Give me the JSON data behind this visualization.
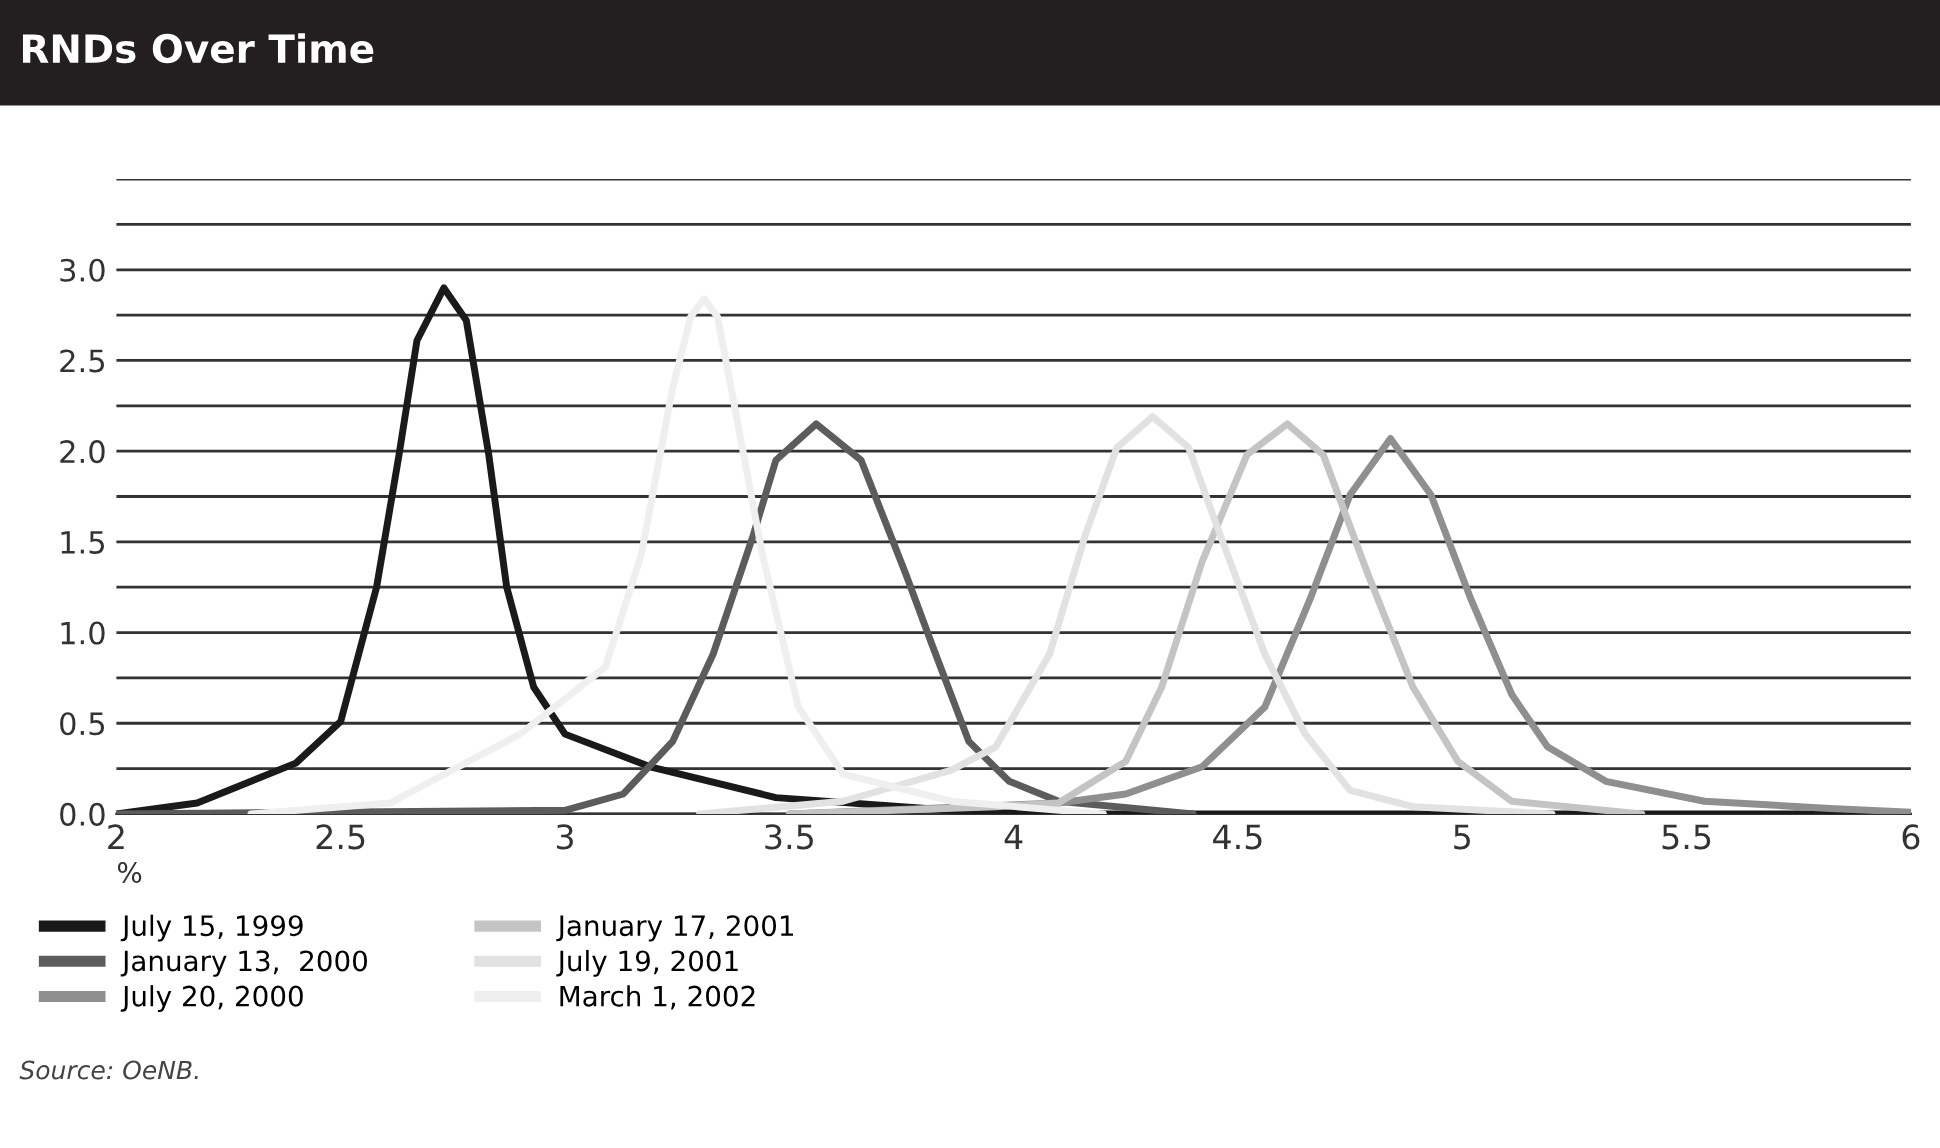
{
  "chart_data": {
    "type": "line",
    "title": "RNDs Over Time",
    "xlabel": "%",
    "xlim": [
      2,
      6
    ],
    "xticks": [
      2,
      2.5,
      3,
      3.5,
      4,
      4.5,
      5,
      5.5,
      6
    ],
    "ylim": [
      0,
      3.5
    ],
    "yticks": [
      {
        "value": 0,
        "label": "0.0"
      },
      {
        "value": 0.25,
        "label": null
      },
      {
        "value": 0.5,
        "label": "0.5"
      },
      {
        "value": 0.75,
        "label": null
      },
      {
        "value": 1,
        "label": "1.0"
      },
      {
        "value": 1.25,
        "label": null
      },
      {
        "value": 1.5,
        "label": "1.5"
      },
      {
        "value": 1.75,
        "label": null
      },
      {
        "value": 2,
        "label": "2.0"
      },
      {
        "value": 2.25,
        "label": null
      },
      {
        "value": 2.5,
        "label": "2.5"
      },
      {
        "value": 2.75,
        "label": null
      },
      {
        "value": 3,
        "label": "3.0"
      },
      {
        "value": 3.25,
        "label": null
      },
      {
        "value": 3.5,
        "label": null
      }
    ],
    "grid": "y",
    "legend": "bottom",
    "marker": "none",
    "line_style": "solid",
    "series": [
      {
        "name": "July 15, 1999",
        "color": "#1a1a1a",
        "x": [
          2.0,
          2.18,
          2.4,
          2.5,
          2.58,
          2.63,
          2.67,
          2.73,
          2.78,
          2.83,
          2.87,
          2.93,
          3.0,
          3.19,
          3.47,
          3.86,
          4.2,
          6.0
        ],
        "values": [
          0.0,
          0.06,
          0.28,
          0.51,
          1.25,
          1.98,
          2.61,
          2.9,
          2.72,
          1.98,
          1.25,
          0.7,
          0.44,
          0.26,
          0.09,
          0.02,
          0.0,
          0.0
        ]
      },
      {
        "name": "January 13,  2000",
        "color": "#5c5c5c",
        "x": [
          2.0,
          3.0,
          3.13,
          3.24,
          3.33,
          3.42,
          3.47,
          3.56,
          3.66,
          3.76,
          3.82,
          3.9,
          3.99,
          4.1,
          4.4
        ],
        "values": [
          0.0,
          0.02,
          0.11,
          0.4,
          0.88,
          1.54,
          1.95,
          2.15,
          1.95,
          1.32,
          0.92,
          0.4,
          0.18,
          0.07,
          0.0
        ]
      },
      {
        "name": "July 20, 2000",
        "color": "#8f8f8f",
        "x": [
          3.5,
          4.1,
          4.25,
          4.42,
          4.56,
          4.66,
          4.75,
          4.84,
          4.93,
          5.02,
          5.11,
          5.19,
          5.32,
          5.54,
          5.82,
          6.0
        ],
        "values": [
          0.0,
          0.06,
          0.11,
          0.26,
          0.59,
          1.18,
          1.76,
          2.07,
          1.76,
          1.18,
          0.66,
          0.37,
          0.18,
          0.07,
          0.03,
          0.01
        ]
      },
      {
        "name": "January 17, 2001",
        "color": "#c4c4c4",
        "x": [
          3.5,
          3.96,
          4.1,
          4.25,
          4.33,
          4.42,
          4.52,
          4.61,
          4.69,
          4.79,
          4.89,
          4.99,
          5.11,
          5.4
        ],
        "values": [
          0.0,
          0.04,
          0.06,
          0.29,
          0.7,
          1.39,
          1.98,
          2.15,
          1.98,
          1.32,
          0.7,
          0.29,
          0.07,
          0.0
        ]
      },
      {
        "name": "July 19, 2001",
        "color": "#e2e2e2",
        "x": [
          3.3,
          3.62,
          3.86,
          3.96,
          4.08,
          4.16,
          4.23,
          4.31,
          4.39,
          4.46,
          4.56,
          4.65,
          4.75,
          4.89,
          5.2
        ],
        "values": [
          0.0,
          0.07,
          0.24,
          0.37,
          0.88,
          1.54,
          2.02,
          2.19,
          2.02,
          1.54,
          0.88,
          0.44,
          0.13,
          0.04,
          0.0
        ]
      },
      {
        "name": "March 1, 2002",
        "color": "#efefef",
        "x": [
          2.3,
          2.61,
          2.9,
          3.09,
          3.17,
          3.24,
          3.28,
          3.31,
          3.34,
          3.37,
          3.44,
          3.52,
          3.62,
          3.86,
          4.2
        ],
        "values": [
          0.0,
          0.06,
          0.44,
          0.81,
          1.43,
          2.35,
          2.74,
          2.84,
          2.74,
          2.35,
          1.43,
          0.59,
          0.22,
          0.07,
          0.0
        ]
      }
    ],
    "annotations": [
      "Source: OeNB."
    ]
  }
}
